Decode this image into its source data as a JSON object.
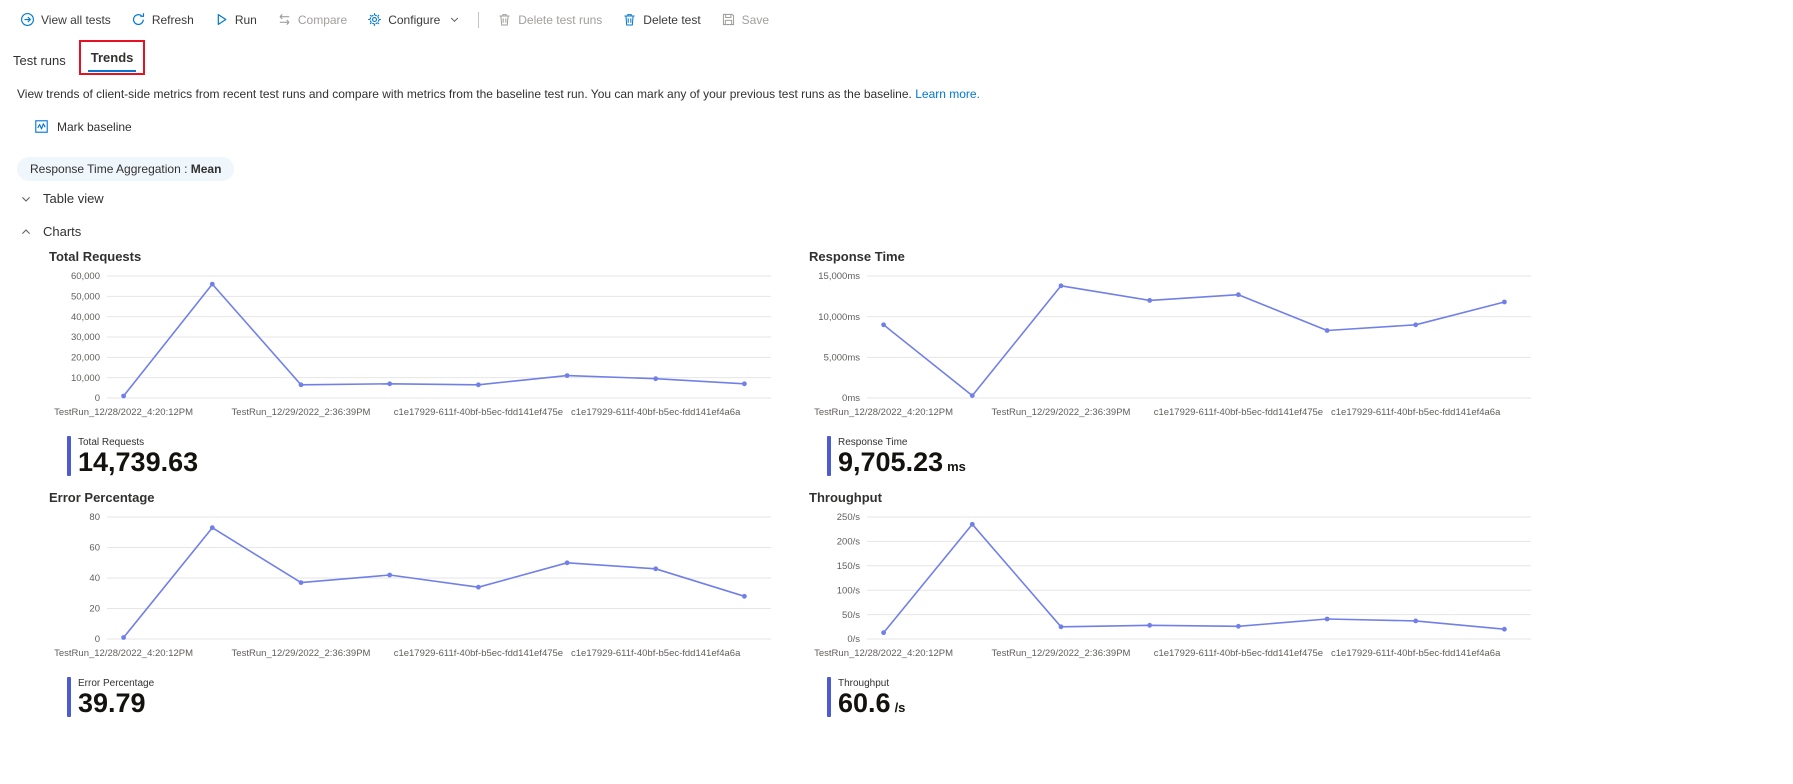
{
  "toolbar": {
    "items": [
      {
        "name": "view-all-tests",
        "label": "View all tests",
        "icon": "back-circle-icon",
        "enabled": true
      },
      {
        "name": "refresh",
        "label": "Refresh",
        "icon": "refresh-icon",
        "enabled": true
      },
      {
        "name": "run",
        "label": "Run",
        "icon": "play-icon",
        "enabled": true
      },
      {
        "name": "compare",
        "label": "Compare",
        "icon": "compare-arrows-icon",
        "enabled": false
      },
      {
        "name": "configure",
        "label": "Configure",
        "icon": "gear-icon",
        "enabled": true,
        "has_dropdown": true
      },
      {
        "name": "divider",
        "divider": true
      },
      {
        "name": "delete-test-runs",
        "label": "Delete test runs",
        "icon": "trash-icon",
        "enabled": false
      },
      {
        "name": "delete-test",
        "label": "Delete test",
        "icon": "trash-icon",
        "enabled": true
      },
      {
        "name": "save",
        "label": "Save",
        "icon": "save-icon",
        "enabled": false
      }
    ]
  },
  "tabs": [
    {
      "label": "Test runs",
      "active": false
    },
    {
      "label": "Trends",
      "active": true,
      "annotated": true
    }
  ],
  "description": {
    "text": "View trends of client-side metrics from recent test runs and compare with metrics from the baseline test run. You can mark any of your previous test runs as the baseline.",
    "link": "Learn more."
  },
  "mark_baseline": {
    "label": "Mark baseline",
    "icon": "pulse-chart-icon"
  },
  "filter_pill": {
    "label": "Response Time Aggregation : ",
    "value": "Mean"
  },
  "sections": [
    {
      "label": "Table view",
      "expanded": false
    },
    {
      "label": "Charts",
      "expanded": true
    }
  ],
  "x_labels": [
    "TestRun_12/28/2022_4:20:12PM",
    "TestRun_12/29/2022_2:36:39PM",
    "c1e17929-611f-40bf-b5ec-fdd141ef475e",
    "c1e17929-611f-40bf-b5ec-fdd141ef4a6a"
  ],
  "colors": {
    "accent": "#0078d4",
    "link": "#0078d4",
    "chart_line": "#7180e8",
    "metric_bar": "#4d5bce",
    "disabled": "#a19f9d",
    "annotation_red": "#e81123",
    "pill_bg": "#eff6fc",
    "grid_line": "#e6e6e6",
    "tick_text": "#605e5c"
  },
  "chart_data": [
    {
      "id": "total-requests",
      "type": "line",
      "title": "Total Requests",
      "ylim": [
        0,
        60000
      ],
      "yticks": [
        "0",
        "10,000",
        "20,000",
        "30,000",
        "40,000",
        "50,000",
        "60,000"
      ],
      "x_label_indices": [
        0,
        2,
        4,
        6
      ],
      "values": [
        1000,
        56000,
        6500,
        7000,
        6500,
        11000,
        9500,
        7000
      ],
      "legend_position": "none",
      "grid": true,
      "metric": {
        "label": "Total Requests",
        "value": "14,739.63",
        "unit": ""
      }
    },
    {
      "id": "response-time",
      "type": "line",
      "title": "Response Time",
      "ylim": [
        0,
        15000
      ],
      "yticks": [
        "0ms",
        "5,000ms",
        "10,000ms",
        "15,000ms"
      ],
      "x_label_indices": [
        0,
        2,
        4,
        6
      ],
      "values": [
        9000,
        300,
        13800,
        12000,
        12700,
        8300,
        9000,
        11800
      ],
      "legend_position": "none",
      "grid": true,
      "metric": {
        "label": "Response Time",
        "value": "9,705.23",
        "unit": "ms"
      }
    },
    {
      "id": "error-percentage",
      "type": "line",
      "title": "Error Percentage",
      "ylim": [
        0,
        80
      ],
      "yticks": [
        "0",
        "20",
        "40",
        "60",
        "80"
      ],
      "x_label_indices": [
        0,
        2,
        4,
        6
      ],
      "values": [
        1,
        73,
        37,
        42,
        34,
        50,
        46,
        28
      ],
      "legend_position": "none",
      "grid": true,
      "metric": {
        "label": "Error Percentage",
        "value": "39.79",
        "unit": ""
      }
    },
    {
      "id": "throughput",
      "type": "line",
      "title": "Throughput",
      "ylim": [
        0,
        250
      ],
      "yticks": [
        "0/s",
        "50/s",
        "100/s",
        "150/s",
        "200/s",
        "250/s"
      ],
      "x_label_indices": [
        0,
        2,
        4,
        6
      ],
      "values": [
        13,
        235,
        25,
        28,
        26,
        41,
        37,
        20
      ],
      "legend_position": "none",
      "grid": true,
      "metric": {
        "label": "Throughput",
        "value": "60.6",
        "unit": "/s"
      }
    }
  ]
}
